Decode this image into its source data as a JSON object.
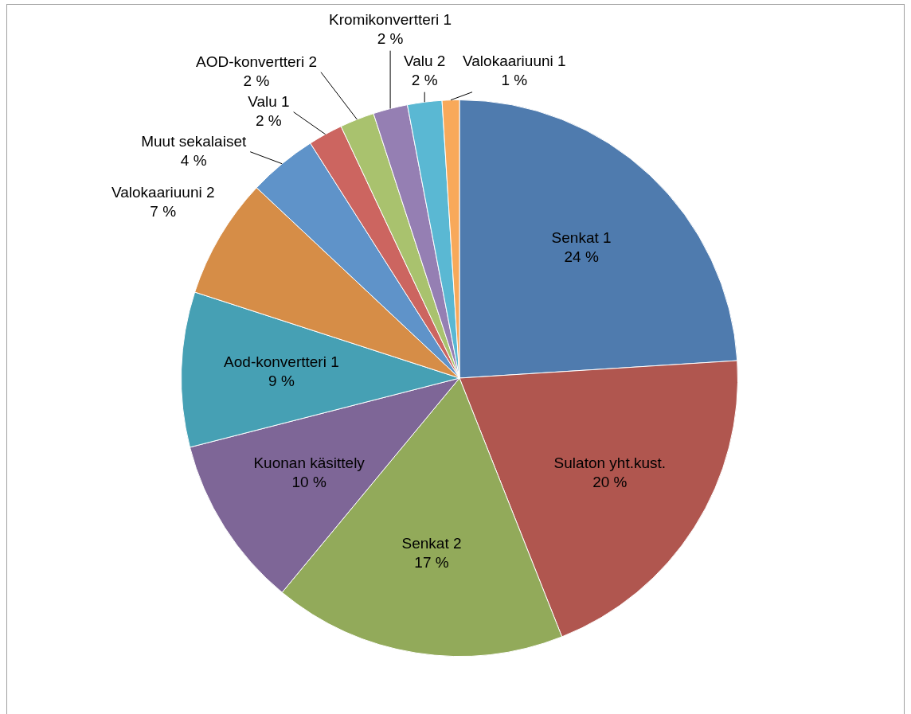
{
  "chart_data": {
    "type": "pie",
    "categories": [
      "Senkat 1",
      "Sulaton yht.kust.",
      "Senkat 2",
      "Kuonan käsittely",
      "Aod-konvertteri 1",
      "Valokaariuuni 2",
      "Muut sekalaiset",
      "Valu 1",
      "AOD-konvertteri 2",
      "Kromikonvertteri 1",
      "Valu 2",
      "Valokaariuuni 1"
    ],
    "values": [
      24,
      20,
      17,
      10,
      9,
      7,
      4,
      2,
      2,
      2,
      2,
      1
    ],
    "value_labels": [
      "24 %",
      "20 %",
      "17 %",
      "10 %",
      "9 %",
      "7 %",
      "4 %",
      "2 %",
      "2 %",
      "2 %",
      "2 %",
      "1 %"
    ],
    "colors": [
      "#4f7bae",
      "#b0564f",
      "#92aa5a",
      "#7e6697",
      "#46a0b4",
      "#d68d47",
      "#5f93c9",
      "#cc6560",
      "#a9c26e",
      "#957fb3",
      "#5ab8d3",
      "#f8a95a"
    ]
  }
}
